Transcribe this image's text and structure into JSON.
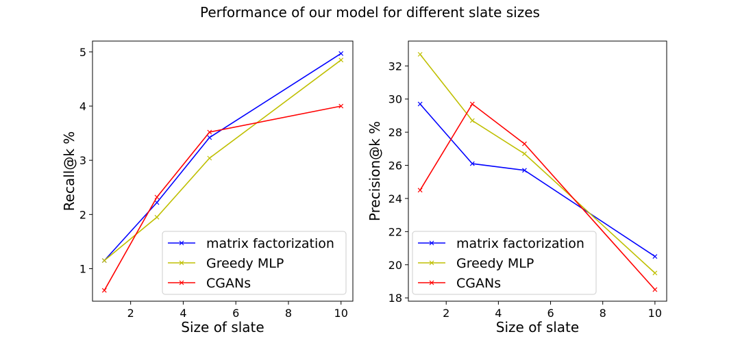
{
  "figure": {
    "title": "Performance of our model for different slate sizes"
  },
  "chart_data": [
    {
      "type": "line",
      "xlabel": "Size of slate",
      "ylabel": "Recall@k %",
      "xlim": [
        0.55,
        10.45
      ],
      "ylim": [
        0.4,
        5.2
      ],
      "xticks": [
        2,
        4,
        6,
        8,
        10
      ],
      "yticks": [
        1,
        2,
        3,
        4,
        5
      ],
      "grid": false,
      "legend": "lower-right",
      "x": [
        1,
        3,
        5,
        10
      ],
      "series": [
        {
          "name": "matrix factorization",
          "color": "#0000ff",
          "values": [
            1.15,
            2.22,
            3.42,
            4.97
          ]
        },
        {
          "name": "Greedy MLP",
          "color": "#bfbf00",
          "values": [
            1.15,
            1.95,
            3.04,
            4.85
          ]
        },
        {
          "name": "CGANs",
          "color": "#ff0000",
          "values": [
            0.6,
            2.32,
            3.52,
            4.0
          ]
        }
      ]
    },
    {
      "type": "line",
      "xlabel": "Size of slate",
      "ylabel": "Precision@k %",
      "xlim": [
        0.55,
        10.45
      ],
      "ylim": [
        17.8,
        33.5
      ],
      "xticks": [
        2,
        4,
        6,
        8,
        10
      ],
      "yticks": [
        18,
        20,
        22,
        24,
        26,
        28,
        30,
        32
      ],
      "grid": false,
      "legend": "lower-left",
      "x": [
        1,
        3,
        5,
        10
      ],
      "series": [
        {
          "name": "matrix factorization",
          "color": "#0000ff",
          "values": [
            29.7,
            26.1,
            25.7,
            20.5
          ]
        },
        {
          "name": "Greedy MLP",
          "color": "#bfbf00",
          "values": [
            32.7,
            28.7,
            26.7,
            19.5
          ]
        },
        {
          "name": "CGANs",
          "color": "#ff0000",
          "values": [
            24.5,
            29.7,
            27.3,
            18.5
          ]
        }
      ]
    }
  ]
}
